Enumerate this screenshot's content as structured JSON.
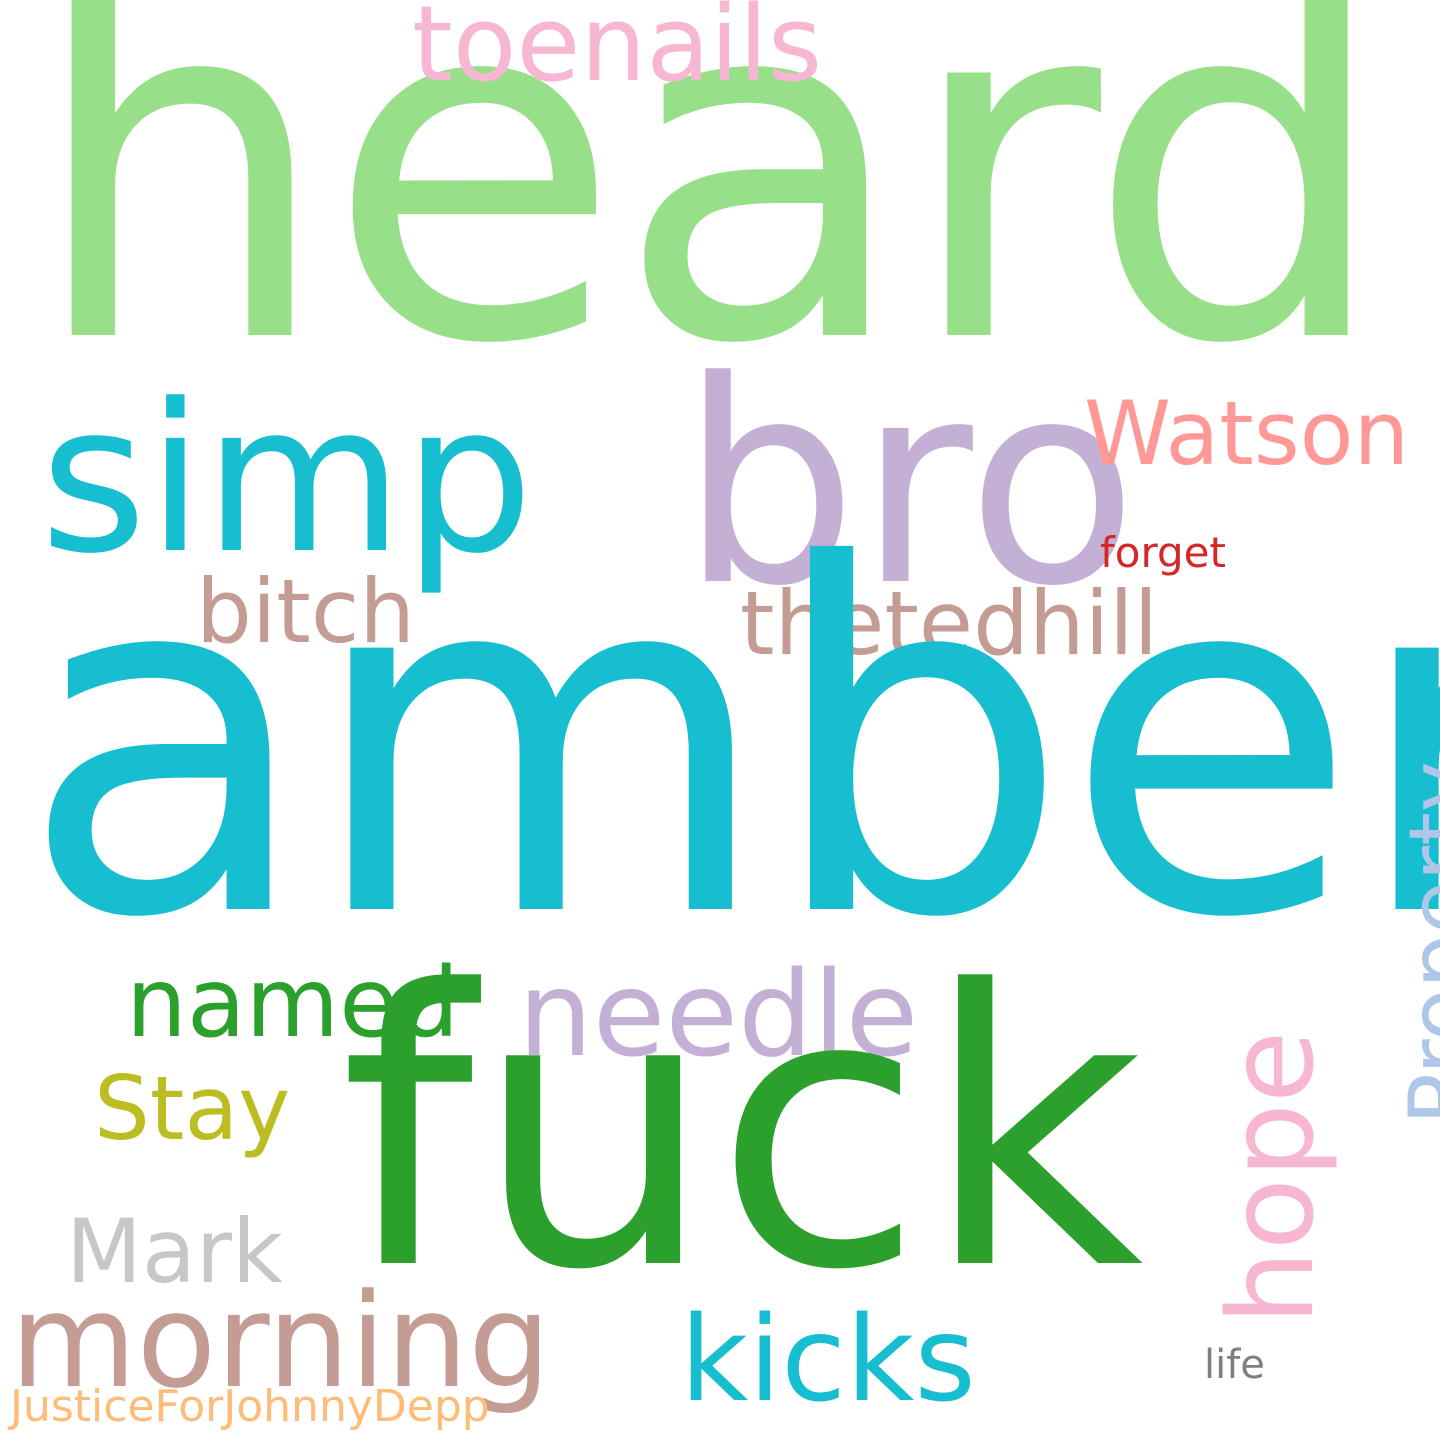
{
  "words": {
    "heard": {
      "text": "heard",
      "color": "#98df8a"
    },
    "amber": {
      "text": "amber",
      "color": "#17becf"
    },
    "fuck": {
      "text": "fuck",
      "color": "#2ca02c"
    },
    "simp": {
      "text": "simp",
      "color": "#17becf"
    },
    "bro": {
      "text": "bro",
      "color": "#c5b0d5"
    },
    "toenails": {
      "text": "toenails",
      "color": "#f7b6d2"
    },
    "watson": {
      "text": "Watson",
      "color": "#ff9896"
    },
    "forget": {
      "text": "forget",
      "color": "#d62728"
    },
    "bitch": {
      "text": "bitch",
      "color": "#c49c94"
    },
    "thetedhill": {
      "text": "thetedhill",
      "color": "#c49c94"
    },
    "needle": {
      "text": "needle",
      "color": "#c5b0d5"
    },
    "named": {
      "text": "named",
      "color": "#2ca02c"
    },
    "stay": {
      "text": "Stay",
      "color": "#bcbd22"
    },
    "hope": {
      "text": "hope",
      "color": "#f7b6d2"
    },
    "property": {
      "text": "Property",
      "color": "#aec7e8"
    },
    "mark": {
      "text": "Mark",
      "color": "#c7c7c7"
    },
    "morning": {
      "text": "morning",
      "color": "#c49c94"
    },
    "kicks": {
      "text": "kicks",
      "color": "#17becf"
    },
    "life": {
      "text": "life",
      "color": "#7f7f7f"
    },
    "justice": {
      "text": "JusticeForJohnnyDepp",
      "color": "#ffbb78"
    }
  }
}
